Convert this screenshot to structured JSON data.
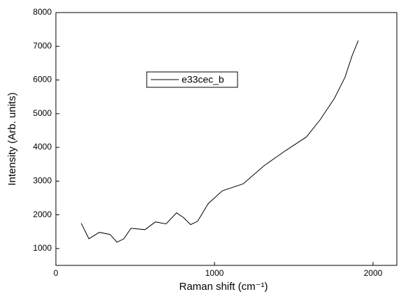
{
  "chart_data": {
    "type": "line",
    "xlabel": "Raman shift (cm⁻¹)",
    "ylabel": "Intensity (Arb. units)",
    "x": [
      160,
      208,
      274,
      341,
      385,
      429,
      473,
      562,
      628,
      695,
      761,
      805,
      850,
      894,
      960,
      1049,
      1181,
      1314,
      1447,
      1580,
      1668,
      1757,
      1823,
      1867,
      1907
    ],
    "series": [
      {
        "name": "e33cec_b",
        "color": "#000000",
        "values": [
          1750,
          1290,
          1480,
          1420,
          1190,
          1290,
          1600,
          1560,
          1790,
          1730,
          2060,
          1920,
          1710,
          1810,
          2330,
          2710,
          2920,
          3460,
          3900,
          4310,
          4830,
          5460,
          6080,
          6710,
          7170
        ]
      }
    ],
    "xlim": [
      0,
      2150
    ],
    "xticks": [
      0,
      1000,
      2000
    ],
    "ylim": [
      500,
      8000
    ],
    "yticks": [
      1000,
      2000,
      3000,
      4000,
      5000,
      6000,
      7000,
      8000
    ],
    "grid": false,
    "legend": "upper left"
  }
}
